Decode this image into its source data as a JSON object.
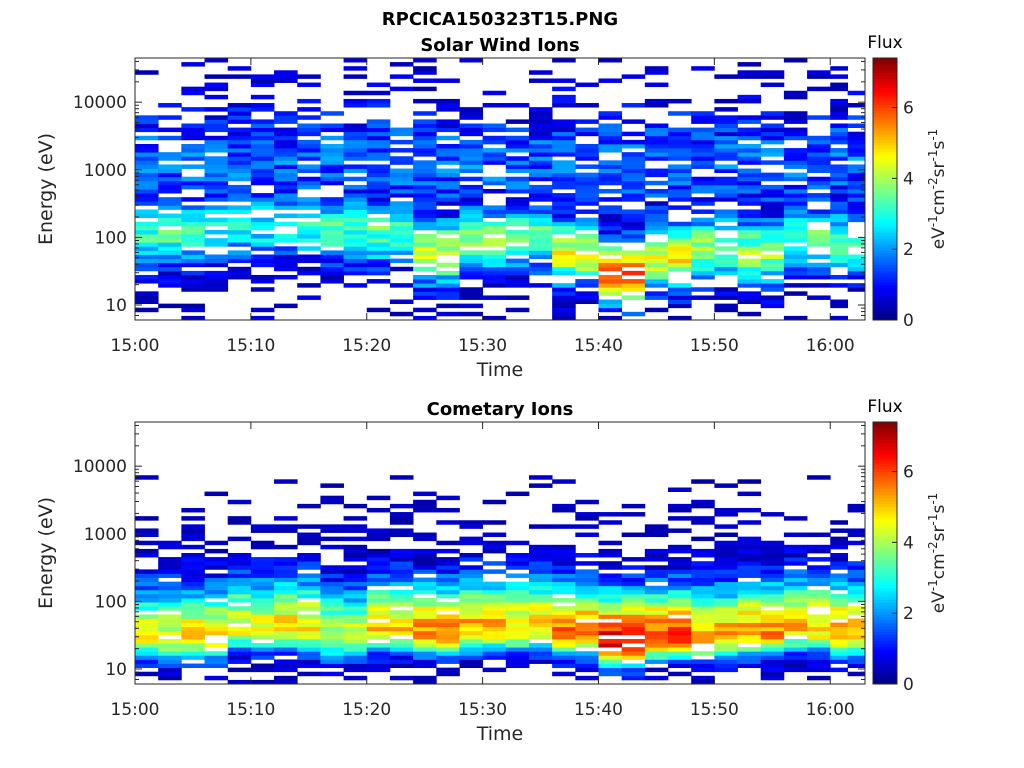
{
  "figure_title": "RPCICA150323T15.PNG",
  "chart_data": [
    {
      "type": "heatmap",
      "title": "Solar Wind Ions",
      "xlabel": "Time",
      "ylabel": "Energy (eV)",
      "y_scale": "log",
      "ylim": [
        6,
        45000
      ],
      "xlim": [
        "15:00",
        "16:03"
      ],
      "x_ticks": [
        "15:00",
        "15:10",
        "15:20",
        "15:30",
        "15:40",
        "15:50",
        "16:00"
      ],
      "y_ticks": [
        "10",
        "100",
        "1000",
        "10000"
      ],
      "colorbar": {
        "label": "Flux",
        "unit_base": "eV",
        "unit_parts": [
          [
            "-1",
            "cm"
          ],
          [
            "-2",
            "sr"
          ],
          [
            "-1",
            "s"
          ],
          [
            "-1",
            ""
          ]
        ],
        "range": [
          0,
          7.4
        ],
        "ticks": [
          "0",
          "2",
          "4",
          "6"
        ],
        "colormap": "jet"
      },
      "columns": [
        {
          "t": "15:00",
          "peak_energy_eV": 120,
          "peak_flux": 3.2
        },
        {
          "t": "15:04",
          "peak_energy_eV": 120,
          "peak_flux": 3.0
        },
        {
          "t": "15:08",
          "peak_energy_eV": 150,
          "peak_flux": 2.8
        },
        {
          "t": "15:12",
          "peak_energy_eV": 150,
          "peak_flux": 3.0
        },
        {
          "t": "15:16",
          "peak_energy_eV": 130,
          "peak_flux": 3.2
        },
        {
          "t": "15:20",
          "peak_energy_eV": 120,
          "peak_flux": 3.4
        },
        {
          "t": "15:24",
          "peak_energy_eV": 60,
          "peak_flux": 4.2
        },
        {
          "t": "15:28",
          "peak_energy_eV": 90,
          "peak_flux": 3.6
        },
        {
          "t": "15:32",
          "peak_energy_eV": 100,
          "peak_flux": 3.4
        },
        {
          "t": "15:36",
          "peak_energy_eV": 60,
          "peak_flux": 4.4
        },
        {
          "t": "15:40",
          "peak_energy_eV": 30,
          "peak_flux": 5.6
        },
        {
          "t": "15:44",
          "peak_energy_eV": 50,
          "peak_flux": 4.6
        },
        {
          "t": "15:48",
          "peak_energy_eV": 70,
          "peak_flux": 3.8
        },
        {
          "t": "15:52",
          "peak_energy_eV": 60,
          "peak_flux": 3.9
        },
        {
          "t": "15:56",
          "peak_energy_eV": 90,
          "peak_flux": 3.4
        },
        {
          "t": "16:00",
          "peak_energy_eV": 80,
          "peak_flux": 3.6
        }
      ]
    },
    {
      "type": "heatmap",
      "title": "Cometary Ions",
      "xlabel": "Time",
      "ylabel": "Energy (eV)",
      "y_scale": "log",
      "ylim": [
        6,
        45000
      ],
      "xlim": [
        "15:00",
        "16:03"
      ],
      "x_ticks": [
        "15:00",
        "15:10",
        "15:20",
        "15:30",
        "15:40",
        "15:50",
        "16:00"
      ],
      "y_ticks": [
        "10",
        "100",
        "1000",
        "10000"
      ],
      "colorbar": {
        "label": "Flux",
        "unit_base": "eV",
        "unit_parts": [
          [
            "-1",
            "cm"
          ],
          [
            "-2",
            "sr"
          ],
          [
            "-1",
            "s"
          ],
          [
            "-1",
            ""
          ]
        ],
        "range": [
          0,
          7.4
        ],
        "ticks": [
          "0",
          "2",
          "4",
          "6"
        ],
        "colormap": "jet"
      },
      "columns": [
        {
          "t": "15:00",
          "peak_energy_eV": 30,
          "peak_flux": 4.4
        },
        {
          "t": "15:04",
          "peak_energy_eV": 30,
          "peak_flux": 4.8
        },
        {
          "t": "15:08",
          "peak_energy_eV": 40,
          "peak_flux": 4.6
        },
        {
          "t": "15:12",
          "peak_energy_eV": 40,
          "peak_flux": 4.8
        },
        {
          "t": "15:16",
          "peak_energy_eV": 30,
          "peak_flux": 4.2
        },
        {
          "t": "15:20",
          "peak_energy_eV": 40,
          "peak_flux": 5.0
        },
        {
          "t": "15:24",
          "peak_energy_eV": 35,
          "peak_flux": 5.4
        },
        {
          "t": "15:28",
          "peak_energy_eV": 40,
          "peak_flux": 5.2
        },
        {
          "t": "15:32",
          "peak_energy_eV": 40,
          "peak_flux": 5.0
        },
        {
          "t": "15:36",
          "peak_energy_eV": 35,
          "peak_flux": 5.6
        },
        {
          "t": "15:40",
          "peak_energy_eV": 25,
          "peak_flux": 6.6
        },
        {
          "t": "15:44",
          "peak_energy_eV": 30,
          "peak_flux": 6.0
        },
        {
          "t": "15:48",
          "peak_energy_eV": 30,
          "peak_flux": 5.2
        },
        {
          "t": "15:52",
          "peak_energy_eV": 35,
          "peak_flux": 5.4
        },
        {
          "t": "15:56",
          "peak_energy_eV": 40,
          "peak_flux": 5.0
        },
        {
          "t": "16:00",
          "peak_energy_eV": 35,
          "peak_flux": 5.4
        }
      ]
    }
  ]
}
